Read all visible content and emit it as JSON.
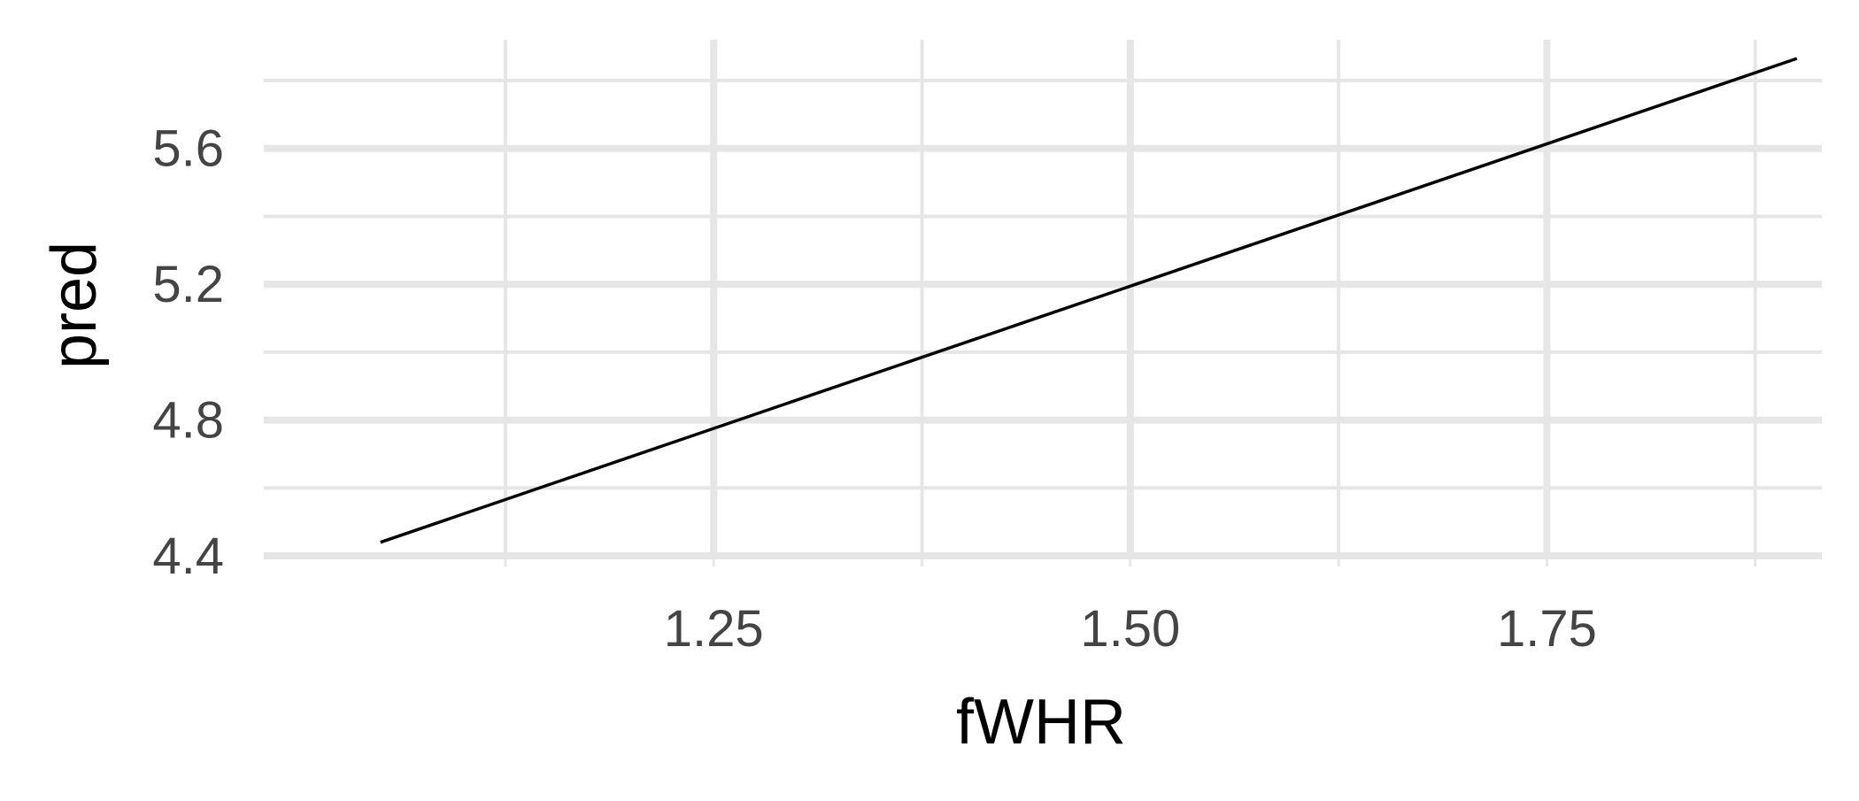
{
  "chart_data": {
    "type": "line",
    "title": "",
    "xlabel": "fWHR",
    "ylabel": "pred",
    "x_ticks": [
      1.25,
      1.5,
      1.75
    ],
    "x_tick_labels": [
      "1.25",
      "1.50",
      "1.75"
    ],
    "x_minor_ticks": [
      1.125,
      1.375,
      1.625,
      1.875
    ],
    "y_ticks": [
      4.4,
      4.8,
      5.2,
      5.6
    ],
    "y_tick_labels": [
      "4.4",
      "4.8",
      "5.2",
      "5.6"
    ],
    "y_minor_ticks": [
      4.6,
      5.0,
      5.4,
      5.8
    ],
    "xlim": [
      0.98,
      1.915
    ],
    "ylim": [
      4.4,
      5.92
    ],
    "grid": true,
    "legend": "none",
    "series": [
      {
        "x": [
          1.05,
          1.9
        ],
        "y": [
          4.44,
          5.865
        ]
      }
    ],
    "colors": {
      "line": "#000000",
      "grid": "#e6e6e6",
      "tick_text": "#444444",
      "axis_title": "#000000"
    }
  }
}
